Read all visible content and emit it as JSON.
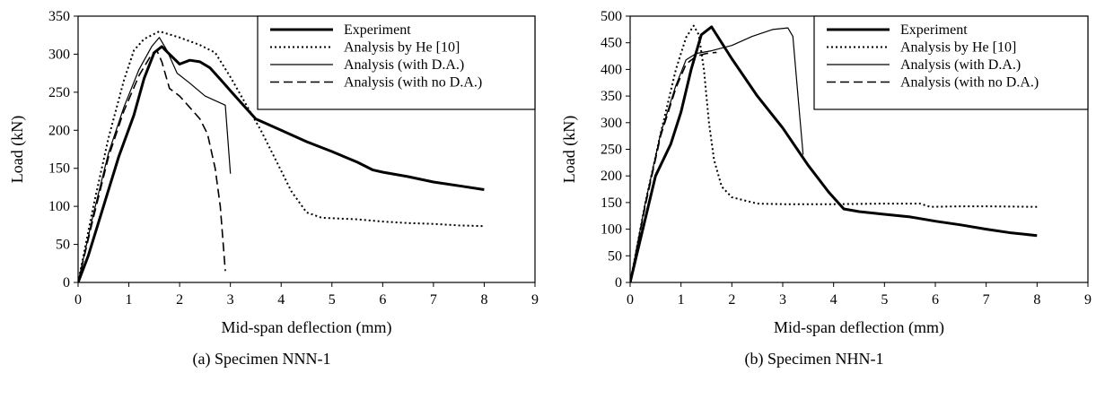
{
  "chart_data": [
    {
      "type": "line",
      "caption": "(a)  Specimen NNN-1",
      "xlabel": "Mid-span deflection (mm)",
      "ylabel": "Load (kN)",
      "xlim": [
        0,
        9
      ],
      "ylim": [
        0,
        350
      ],
      "xticks": [
        "0",
        "1",
        "2",
        "3",
        "4",
        "5",
        "6",
        "7",
        "8",
        "9"
      ],
      "yticks": [
        "0",
        "50",
        "100",
        "150",
        "200",
        "250",
        "300",
        "350"
      ],
      "grid": false,
      "legend": "top-right",
      "series": [
        {
          "name": "Experiment",
          "style": "solid-thick",
          "points": [
            [
              0,
              0
            ],
            [
              0.2,
              35
            ],
            [
              0.5,
              100
            ],
            [
              0.8,
              165
            ],
            [
              1.1,
              220
            ],
            [
              1.3,
              268
            ],
            [
              1.5,
              302
            ],
            [
              1.65,
              310
            ],
            [
              1.8,
              300
            ],
            [
              2.0,
              287
            ],
            [
              2.2,
              292
            ],
            [
              2.4,
              290
            ],
            [
              2.6,
              282
            ],
            [
              2.8,
              267
            ],
            [
              3.0,
              252
            ],
            [
              3.2,
              237
            ],
            [
              3.5,
              215
            ],
            [
              4.0,
              200
            ],
            [
              4.5,
              185
            ],
            [
              5.0,
              172
            ],
            [
              5.5,
              158
            ],
            [
              5.8,
              148
            ],
            [
              6.0,
              145
            ],
            [
              6.5,
              139
            ],
            [
              7.0,
              132
            ],
            [
              7.5,
              127
            ],
            [
              8.0,
              122
            ]
          ]
        },
        {
          "name": "Analysis by He [10]",
          "style": "dotted",
          "points": [
            [
              0,
              0
            ],
            [
              0.3,
              100
            ],
            [
              0.6,
              190
            ],
            [
              0.9,
              265
            ],
            [
              1.1,
              305
            ],
            [
              1.3,
              320
            ],
            [
              1.6,
              330
            ],
            [
              2.0,
              322
            ],
            [
              2.4,
              312
            ],
            [
              2.7,
              302
            ],
            [
              3.0,
              270
            ],
            [
              3.3,
              235
            ],
            [
              3.6,
              200
            ],
            [
              3.9,
              160
            ],
            [
              4.2,
              120
            ],
            [
              4.5,
              92
            ],
            [
              4.8,
              85
            ],
            [
              5.5,
              83
            ],
            [
              6.0,
              80
            ],
            [
              6.5,
              78
            ],
            [
              7.0,
              77
            ],
            [
              7.5,
              75
            ],
            [
              8.0,
              74
            ]
          ]
        },
        {
          "name": "Analysis (with D.A.)",
          "style": "solid-thin",
          "points": [
            [
              0,
              0
            ],
            [
              0.3,
              90
            ],
            [
              0.6,
              170
            ],
            [
              0.9,
              230
            ],
            [
              1.2,
              280
            ],
            [
              1.45,
              310
            ],
            [
              1.6,
              322
            ],
            [
              1.75,
              305
            ],
            [
              1.95,
              275
            ],
            [
              2.2,
              262
            ],
            [
              2.5,
              245
            ],
            [
              2.9,
              233
            ],
            [
              3.0,
              143
            ]
          ]
        },
        {
          "name": "Analysis (with no D.A.)",
          "style": "dashed",
          "points": [
            [
              0,
              0
            ],
            [
              0.3,
              85
            ],
            [
              0.6,
              165
            ],
            [
              0.9,
              225
            ],
            [
              1.2,
              272
            ],
            [
              1.45,
              300
            ],
            [
              1.55,
              305
            ],
            [
              1.65,
              290
            ],
            [
              1.8,
              255
            ],
            [
              2.0,
              245
            ],
            [
              2.2,
              230
            ],
            [
              2.4,
              215
            ],
            [
              2.55,
              195
            ],
            [
              2.7,
              150
            ],
            [
              2.8,
              100
            ],
            [
              2.9,
              15
            ]
          ]
        }
      ]
    },
    {
      "type": "line",
      "caption": "(b)  Specimen NHN-1",
      "xlabel": "Mid-span deflection (mm)",
      "ylabel": "Load (kN)",
      "xlim": [
        0,
        9
      ],
      "ylim": [
        0,
        500
      ],
      "xticks": [
        "0",
        "1",
        "2",
        "3",
        "4",
        "5",
        "6",
        "7",
        "8",
        "9"
      ],
      "yticks": [
        "0",
        "50",
        "100",
        "150",
        "200",
        "250",
        "300",
        "350",
        "400",
        "450",
        "500"
      ],
      "grid": false,
      "legend": "top-right",
      "series": [
        {
          "name": "Experiment",
          "style": "solid-thick",
          "points": [
            [
              0,
              0
            ],
            [
              0.2,
              80
            ],
            [
              0.5,
              200
            ],
            [
              0.8,
              260
            ],
            [
              1.0,
              320
            ],
            [
              1.2,
              400
            ],
            [
              1.4,
              465
            ],
            [
              1.6,
              480
            ],
            [
              2.0,
              420
            ],
            [
              2.5,
              350
            ],
            [
              3.0,
              290
            ],
            [
              3.5,
              220
            ],
            [
              3.9,
              170
            ],
            [
              4.2,
              138
            ],
            [
              4.5,
              133
            ],
            [
              5.0,
              128
            ],
            [
              5.5,
              123
            ],
            [
              6.0,
              115
            ],
            [
              6.5,
              108
            ],
            [
              7.0,
              100
            ],
            [
              7.5,
              93
            ],
            [
              8.0,
              88
            ]
          ]
        },
        {
          "name": "Analysis by He [10]",
          "style": "dotted",
          "points": [
            [
              0,
              0
            ],
            [
              0.3,
              150
            ],
            [
              0.6,
              280
            ],
            [
              0.9,
              400
            ],
            [
              1.1,
              460
            ],
            [
              1.25,
              482
            ],
            [
              1.35,
              465
            ],
            [
              1.45,
              400
            ],
            [
              1.55,
              300
            ],
            [
              1.65,
              230
            ],
            [
              1.8,
              180
            ],
            [
              2.0,
              160
            ],
            [
              2.5,
              148
            ],
            [
              3.0,
              147
            ],
            [
              4.0,
              147
            ],
            [
              5.0,
              148
            ],
            [
              5.7,
              148
            ],
            [
              5.9,
              142
            ],
            [
              6.5,
              143
            ],
            [
              7.0,
              143
            ],
            [
              8.0,
              142
            ]
          ]
        },
        {
          "name": "Analysis (with D.A.)",
          "style": "solid-thin",
          "points": [
            [
              0,
              0
            ],
            [
              0.3,
              150
            ],
            [
              0.6,
              280
            ],
            [
              0.9,
              370
            ],
            [
              1.1,
              418
            ],
            [
              1.3,
              430
            ],
            [
              1.6,
              435
            ],
            [
              2.0,
              445
            ],
            [
              2.4,
              462
            ],
            [
              2.8,
              475
            ],
            [
              3.1,
              478
            ],
            [
              3.2,
              462
            ],
            [
              3.3,
              350
            ],
            [
              3.4,
              240
            ]
          ]
        },
        {
          "name": "Analysis (with no D.A.)",
          "style": "dashed",
          "points": [
            [
              0,
              0
            ],
            [
              0.3,
              145
            ],
            [
              0.6,
              275
            ],
            [
              0.9,
              365
            ],
            [
              1.1,
              410
            ],
            [
              1.3,
              425
            ],
            [
              1.5,
              430
            ],
            [
              1.7,
              432
            ]
          ]
        }
      ]
    }
  ]
}
